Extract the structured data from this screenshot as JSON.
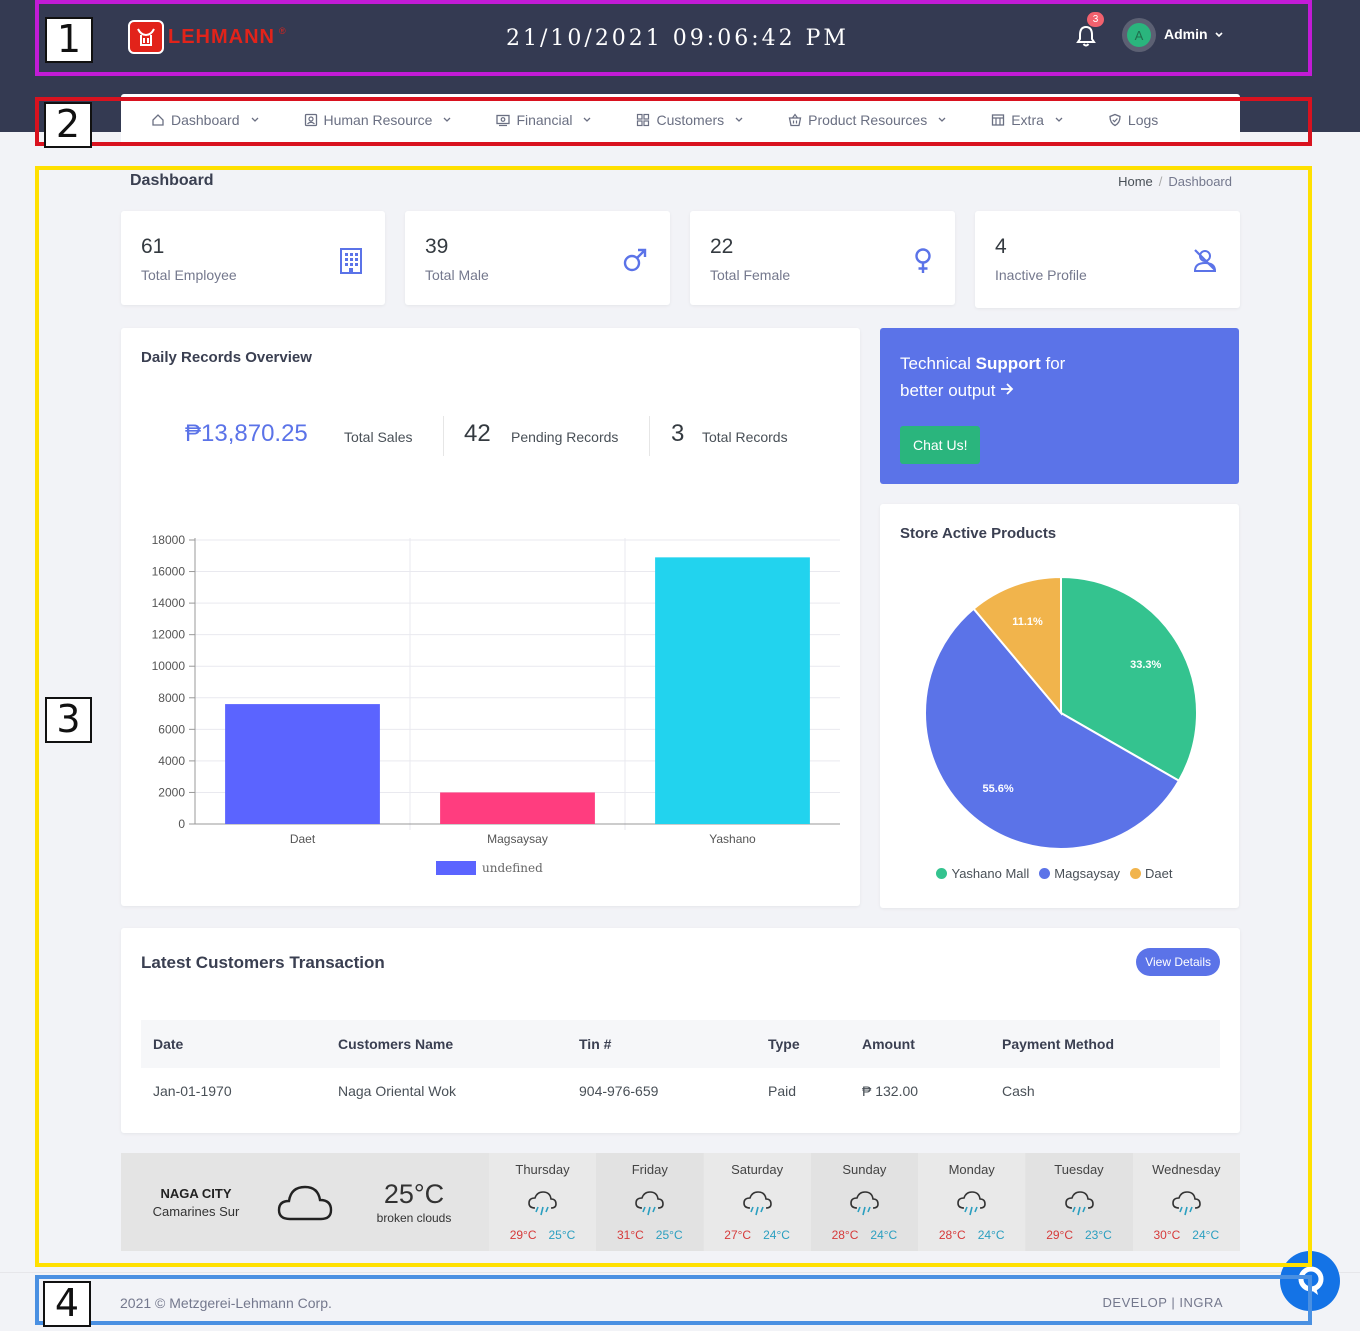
{
  "header": {
    "logo_text": "LEHMANN",
    "logo_mark": "®",
    "datetime": "21/10/2021 09:06:42 PM",
    "notification_count": "3",
    "avatar_initial": "A",
    "user_label": "Admin"
  },
  "nav": {
    "items": [
      {
        "label": "Dashboard",
        "icon": "home-icon"
      },
      {
        "label": "Human Resource",
        "icon": "id-card-icon"
      },
      {
        "label": "Financial",
        "icon": "money-icon"
      },
      {
        "label": "Customers",
        "icon": "grid-icon"
      },
      {
        "label": "Product Resources",
        "icon": "basket-icon"
      },
      {
        "label": "Extra",
        "icon": "table-icon"
      },
      {
        "label": "Logs",
        "icon": "shield-icon"
      }
    ]
  },
  "page": {
    "title": "Dashboard",
    "breadcrumb": [
      "Home",
      "Dashboard"
    ]
  },
  "stats": [
    {
      "value": "61",
      "label": "Total Employee",
      "icon": "building-icon"
    },
    {
      "value": "39",
      "label": "Total Male",
      "icon": "male-icon"
    },
    {
      "value": "22",
      "label": "Total Female",
      "icon": "female-icon"
    },
    {
      "value": "4",
      "label": "Inactive Profile",
      "icon": "user-slash-icon"
    }
  ],
  "overview": {
    "title": "Daily Records Overview",
    "total_sales_value": "₱13,870.25",
    "total_sales_label": "Total Sales",
    "pending_value": "42",
    "pending_label": "Pending Records",
    "records_value": "3",
    "records_label": "Total Records"
  },
  "support": {
    "line1_pre": "Technical ",
    "line1_bold": "Support",
    "line1_post": " for",
    "line2": "better output",
    "button": "Chat Us!"
  },
  "pie_title": "Store Active Products",
  "chart_data": [
    {
      "type": "bar",
      "categories": [
        "Daet",
        "Magsaysay",
        "Yashano"
      ],
      "values": [
        7600,
        2000,
        16900
      ],
      "colors": [
        "#5b64ff",
        "#ff3d7f",
        "#22d3ee"
      ],
      "ylim": [
        0,
        18000
      ],
      "yticks": [
        "0",
        "2000",
        "4000",
        "6000",
        "8000",
        "10000",
        "12000",
        "14000",
        "16000",
        "18000"
      ],
      "legend": "undefined",
      "legend_color": "#5b64ff"
    },
    {
      "type": "pie",
      "labels": [
        "Yashano Mall",
        "Magsaysay",
        "Daet"
      ],
      "values": [
        33.3,
        55.6,
        11.1
      ],
      "value_labels": [
        "33.3%",
        "55.6%",
        "11.1%"
      ],
      "colors": [
        "#34c38f",
        "#5b73e8",
        "#f1b44c"
      ]
    }
  ],
  "transactions": {
    "title": "Latest Customers Transaction",
    "button": "View Details",
    "headers": [
      "Date",
      "Customers Name",
      "Tin #",
      "Type",
      "Amount",
      "Payment Method"
    ],
    "rows": [
      [
        "Jan-01-1970",
        "Naga Oriental Wok",
        "904-976-659",
        "Paid",
        "₱ 132.00",
        "Cash"
      ]
    ]
  },
  "weather": {
    "city": "NAGA CITY",
    "region": "Camarines Sur",
    "temp": "25°C",
    "desc": "broken clouds",
    "days": [
      {
        "day": "Thursday",
        "hi": "29°C",
        "lo": "25°C"
      },
      {
        "day": "Friday",
        "hi": "31°C",
        "lo": "25°C"
      },
      {
        "day": "Saturday",
        "hi": "27°C",
        "lo": "24°C"
      },
      {
        "day": "Sunday",
        "hi": "28°C",
        "lo": "24°C"
      },
      {
        "day": "Monday",
        "hi": "28°C",
        "lo": "24°C"
      },
      {
        "day": "Tuesday",
        "hi": "29°C",
        "lo": "23°C"
      },
      {
        "day": "Wednesday",
        "hi": "30°C",
        "lo": "24°C"
      }
    ]
  },
  "footer": {
    "copyright": "2021 © Metzgerei-Lehmann Corp.",
    "credit": "DEVELOP | INGRA"
  },
  "annotations": [
    {
      "label": "1",
      "color": "#c21bd6"
    },
    {
      "label": "2",
      "color": "#d9121f"
    },
    {
      "label": "3",
      "color": "#ffe000"
    },
    {
      "label": "4",
      "color": "#4a90e2"
    }
  ]
}
